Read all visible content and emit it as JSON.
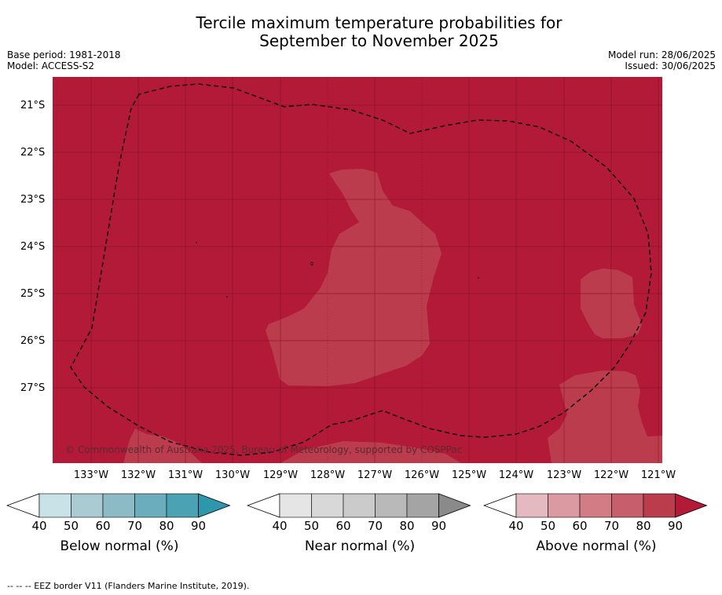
{
  "title_line1": "Tercile maximum temperature probabilities for",
  "title_line2": "September to November 2025",
  "base_period": "Base period: 1981-2018",
  "model": "Model: ACCESS-S2",
  "model_run": "Model run: 28/06/2025",
  "issued": "Issued: 30/06/2025",
  "copyright": "© Commonwealth of Australia 2025, Bureau of Meteorology, supported by COSPPac",
  "footnote": "--  --  -- EEZ border V11 (Flanders Marine Institute, 2019).",
  "lat_labels": [
    "21°S",
    "22°S",
    "23°S",
    "24°S",
    "25°S",
    "26°S",
    "27°S"
  ],
  "lon_labels": [
    "133°W",
    "132°W",
    "131°W",
    "130°W",
    "129°W",
    "128°W",
    "127°W",
    "126°W",
    "125°W",
    "124°W",
    "123°W",
    "122°W",
    "121°W"
  ],
  "colorbars": {
    "below": {
      "label": "Below normal (%)",
      "ticks": [
        "40",
        "50",
        "60",
        "70",
        "80",
        "90"
      ],
      "colors": [
        "#c9e2e7",
        "#abcbd2",
        "#8cbbc6",
        "#6cadbd",
        "#4aa2b3",
        "#2e96ad"
      ]
    },
    "near": {
      "label": "Near normal (%)",
      "ticks": [
        "40",
        "50",
        "60",
        "70",
        "80",
        "90"
      ],
      "colors": [
        "#e5e5e5",
        "#d8d8d8",
        "#cbcbcb",
        "#b9b9b9",
        "#a4a4a4",
        "#8a8a8a"
      ]
    },
    "above": {
      "label": "Above normal (%)",
      "ticks": [
        "40",
        "50",
        "60",
        "70",
        "80",
        "90"
      ],
      "colors": [
        "#e5b9c0",
        "#db9aa2",
        "#d27c86",
        "#c65f6b",
        "#ba3c4d",
        "#b21a38"
      ]
    }
  },
  "map_colors": {
    "dominant_above_90": "#b21a38",
    "above_80_90": "#ba3c4d",
    "eez_border": "#000000"
  }
}
